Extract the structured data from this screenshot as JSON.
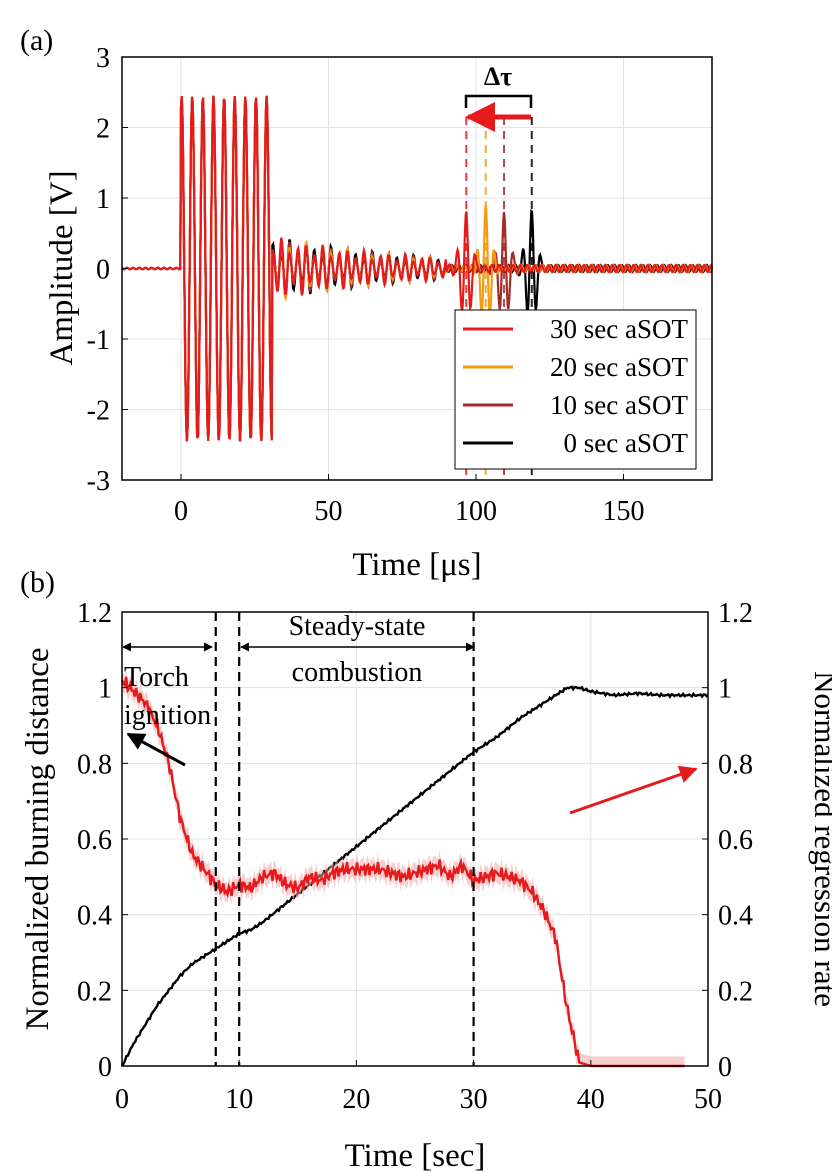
{
  "chart_data": [
    {
      "panel_label": "(a)",
      "type": "line",
      "xlabel": "Time [μs]",
      "ylabel": "Amplitude [V]",
      "xlim": [
        -20,
        180
      ],
      "ylim": [
        -3,
        3
      ],
      "xticks": [
        "0",
        "50",
        "100",
        "150"
      ],
      "yticks": [
        "-3",
        "-2",
        "-1",
        "0",
        "1",
        "2",
        "3"
      ],
      "grid": true,
      "legend_position": "bottom-right",
      "annotation": "Δτ",
      "series": [
        {
          "name": "30 sec aSOT",
          "color": "#e41a1c",
          "echo_time": 96.7
        },
        {
          "name": "20 sec aSOT",
          "color": "#f39c12",
          "echo_time": 103.3
        },
        {
          "name": "10 sec aSOT",
          "color": "#a52a2a",
          "echo_time": 109.5
        },
        {
          "name": "0 sec aSOT",
          "color": "#000000",
          "echo_time": 118.9
        }
      ]
    },
    {
      "panel_label": "(b)",
      "type": "line",
      "xlabel": "Time [sec]",
      "ylabel": "Normalized burning distance",
      "y2label": "Normalized regression rate",
      "xlim": [
        0,
        50
      ],
      "ylim": [
        0,
        1.2
      ],
      "y2lim": [
        0,
        1.2
      ],
      "xticks": [
        "0",
        "10",
        "20",
        "30",
        "40",
        "50"
      ],
      "yticks": [
        "0",
        "0.2",
        "0.4",
        "0.6",
        "0.8",
        "1",
        "1.2"
      ],
      "y2ticks": [
        "0",
        "0.2",
        "0.4",
        "0.6",
        "0.8",
        "1",
        "1.2"
      ],
      "grid": true,
      "vlines": [
        8,
        10,
        30
      ],
      "annotations": {
        "torch": [
          "Torch",
          "ignition"
        ],
        "steady": [
          "Steady-state",
          "combustion"
        ]
      },
      "series": [
        {
          "name": "burning distance",
          "axis": "left",
          "color": "#000000",
          "x": [
            0,
            1,
            2,
            3,
            4,
            5,
            6,
            7,
            8,
            9,
            10,
            11,
            12,
            14,
            16,
            18,
            20,
            22,
            24,
            26,
            28,
            30,
            32,
            34,
            36,
            37,
            38,
            39,
            40,
            42,
            44,
            46,
            48,
            50
          ],
          "y": [
            0,
            0.06,
            0.11,
            0.16,
            0.2,
            0.24,
            0.27,
            0.29,
            0.31,
            0.33,
            0.35,
            0.36,
            0.38,
            0.43,
            0.48,
            0.53,
            0.58,
            0.63,
            0.68,
            0.73,
            0.78,
            0.83,
            0.87,
            0.92,
            0.96,
            0.98,
            1.0,
            1.0,
            0.99,
            0.98,
            0.985,
            0.98,
            0.98,
            0.98
          ]
        },
        {
          "name": "regression rate",
          "axis": "right",
          "color": "#e41a1c",
          "x": [
            0,
            1,
            2,
            3,
            4,
            5,
            6,
            7,
            8,
            9,
            10,
            11,
            12,
            13,
            14,
            15,
            16,
            17,
            18,
            19,
            20,
            21,
            22,
            23,
            24,
            25,
            26,
            27,
            28,
            29,
            30,
            31,
            32,
            33,
            34,
            35,
            36,
            37,
            37.5,
            38,
            38.5,
            39,
            40,
            41,
            42,
            43,
            44,
            45,
            46,
            47,
            48
          ],
          "y": [
            1.02,
            0.99,
            0.96,
            0.9,
            0.8,
            0.65,
            0.56,
            0.52,
            0.48,
            0.46,
            0.48,
            0.47,
            0.5,
            0.51,
            0.48,
            0.47,
            0.5,
            0.49,
            0.51,
            0.52,
            0.52,
            0.52,
            0.52,
            0.51,
            0.5,
            0.51,
            0.52,
            0.53,
            0.5,
            0.53,
            0.49,
            0.5,
            0.51,
            0.5,
            0.49,
            0.46,
            0.41,
            0.34,
            0.24,
            0.15,
            0.08,
            0.01,
            0,
            0,
            0,
            0,
            0,
            0,
            0,
            0,
            0
          ]
        }
      ]
    }
  ]
}
